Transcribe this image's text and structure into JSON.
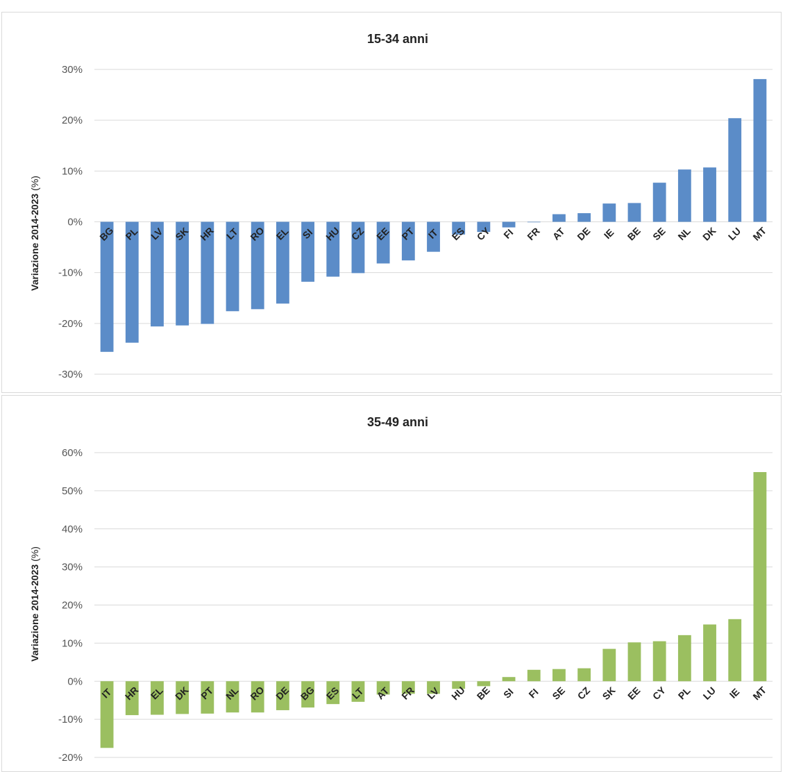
{
  "chart_data": [
    {
      "type": "bar",
      "title": "15-34 anni",
      "ylabel": "Variazione 2014-2023",
      "ylabel_unit": "(%)",
      "ylim": [
        -30,
        30
      ],
      "yticks": [
        30,
        20,
        10,
        0,
        -10,
        -20,
        -30
      ],
      "ytick_labels": [
        "30%",
        "20%",
        "10%",
        "0%",
        "-10%",
        "-20%",
        "-30%"
      ],
      "grid": true,
      "color": "#5b8cc8",
      "categories": [
        "BG",
        "PL",
        "LV",
        "SK",
        "HR",
        "LT",
        "RO",
        "EL",
        "SI",
        "HU",
        "CZ",
        "EE",
        "PT",
        "IT",
        "ES",
        "CY",
        "FI",
        "FR",
        "AT",
        "DE",
        "IE",
        "BE",
        "SE",
        "NL",
        "DK",
        "LU",
        "MT"
      ],
      "values": [
        -25.6,
        -23.8,
        -20.6,
        -20.4,
        -20.1,
        -17.6,
        -17.2,
        -16.1,
        -11.8,
        -10.8,
        -10.1,
        -8.2,
        -7.6,
        -5.9,
        -2.5,
        -2.0,
        -1.1,
        -0.1,
        1.5,
        1.7,
        3.6,
        3.7,
        7.7,
        10.3,
        10.7,
        20.4,
        28.1
      ]
    },
    {
      "type": "bar",
      "title": "35-49 anni",
      "ylabel": "Variazione 2014-2023",
      "ylabel_unit": "(%)",
      "ylim": [
        -20,
        60
      ],
      "yticks": [
        60,
        50,
        40,
        30,
        20,
        10,
        0,
        -10,
        -20
      ],
      "ytick_labels": [
        "60%",
        "50%",
        "40%",
        "30%",
        "20%",
        "10%",
        "0%",
        "-10%",
        "-20%"
      ],
      "grid": true,
      "color": "#9bbf60",
      "categories": [
        "IT",
        "HR",
        "EL",
        "DK",
        "PT",
        "NL",
        "RO",
        "DE",
        "BG",
        "ES",
        "LT",
        "AT",
        "FR",
        "LV",
        "HU",
        "BE",
        "SI",
        "FI",
        "SE",
        "CZ",
        "SK",
        "EE",
        "CY",
        "PL",
        "LU",
        "IE",
        "MT"
      ],
      "values": [
        -17.5,
        -8.9,
        -8.8,
        -8.6,
        -8.5,
        -8.2,
        -8.2,
        -7.6,
        -6.9,
        -6.0,
        -5.4,
        -3.5,
        -3.3,
        -3.3,
        -2.0,
        -1.3,
        1.1,
        3.0,
        3.2,
        3.4,
        8.5,
        10.2,
        10.5,
        12.1,
        14.9,
        16.3,
        54.9
      ]
    }
  ]
}
